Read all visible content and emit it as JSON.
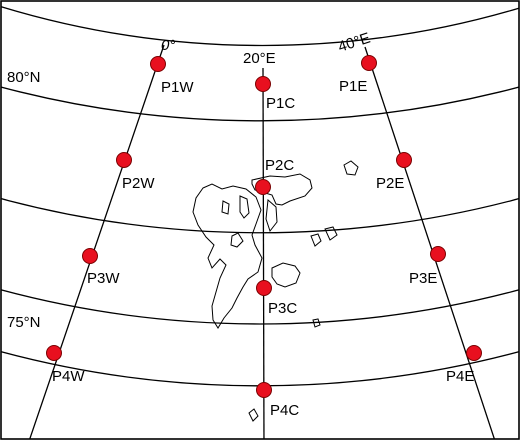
{
  "labels": {
    "lat_80": "80°N",
    "lat_75": "75°N",
    "lon_0": "0°",
    "lon_20e": "20°E",
    "lon_40e": "40°E"
  },
  "points": {
    "p1w": "P1W",
    "p1c": "P1C",
    "p1e": "P1E",
    "p2w": "P2W",
    "p2c": "P2C",
    "p2e": "P2E",
    "p3w": "P3W",
    "p3c": "P3C",
    "p3e": "P3E",
    "p4w": "P4W",
    "p4c": "P4C",
    "p4e": "P4E"
  },
  "colors": {
    "marker_fill": "#e8101f",
    "marker_stroke": "#7a0000",
    "lines": "#000000"
  }
}
